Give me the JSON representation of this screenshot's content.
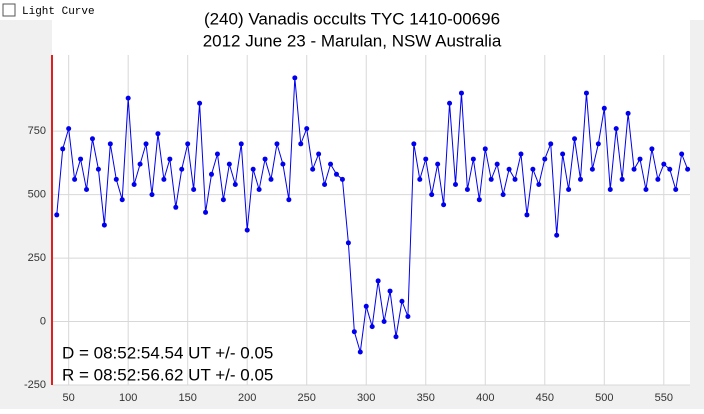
{
  "window_title": "Light Curve",
  "chart_data": {
    "type": "line",
    "title": [
      "(240) Vanadis occults TYC 1410-00696",
      "2012 June 23 - Marulan, NSW Australia"
    ],
    "annotations": [
      "D = 08:52:54.54 UT +/- 0.05",
      "R = 08:52:56.62 UT +/- 0.05"
    ],
    "x": [
      40,
      45,
      50,
      55,
      60,
      65,
      70,
      75,
      80,
      85,
      90,
      95,
      100,
      105,
      110,
      115,
      120,
      125,
      130,
      135,
      140,
      145,
      150,
      155,
      160,
      165,
      170,
      175,
      180,
      185,
      190,
      195,
      200,
      205,
      210,
      215,
      220,
      225,
      230,
      235,
      240,
      245,
      250,
      255,
      260,
      265,
      270,
      275,
      280,
      285,
      290,
      295,
      300,
      305,
      310,
      315,
      320,
      325,
      330,
      335,
      340,
      345,
      350,
      355,
      360,
      365,
      370,
      375,
      380,
      385,
      390,
      395,
      400,
      405,
      410,
      415,
      420,
      425,
      430,
      435,
      440,
      445,
      450,
      455,
      460,
      465,
      470,
      475,
      480,
      485,
      490,
      495,
      500,
      505,
      510,
      515,
      520,
      525,
      530,
      535,
      540,
      545,
      550,
      555,
      560,
      565,
      570
    ],
    "series": [
      {
        "name": "Light curve",
        "color": "#0000ee",
        "values": [
          420,
          680,
          760,
          560,
          640,
          520,
          720,
          600,
          380,
          700,
          560,
          480,
          880,
          540,
          620,
          700,
          500,
          740,
          560,
          640,
          450,
          600,
          700,
          520,
          860,
          430,
          580,
          660,
          480,
          620,
          540,
          700,
          360,
          600,
          520,
          640,
          560,
          700,
          620,
          480,
          960,
          700,
          760,
          600,
          660,
          540,
          620,
          580,
          560,
          310,
          -40,
          -120,
          60,
          -20,
          160,
          0,
          120,
          -60,
          80,
          20,
          700,
          560,
          640,
          500,
          620,
          460,
          860,
          540,
          900,
          520,
          640,
          480,
          680,
          560,
          620,
          500,
          600,
          560,
          660,
          420,
          600,
          540,
          640,
          700,
          340,
          660,
          520,
          720,
          560,
          900,
          600,
          700,
          840,
          520,
          760,
          560,
          820,
          600,
          640,
          520,
          680,
          560,
          620,
          600,
          520,
          660,
          600
        ]
      }
    ],
    "xlim": [
      36,
      572
    ],
    "xticks": [
      50,
      100,
      150,
      200,
      250,
      300,
      350,
      400,
      450,
      500,
      550
    ],
    "ylim": [
      -250,
      1050
    ],
    "yticks": [
      -250,
      0,
      250,
      500,
      750
    ],
    "grid": true
  }
}
